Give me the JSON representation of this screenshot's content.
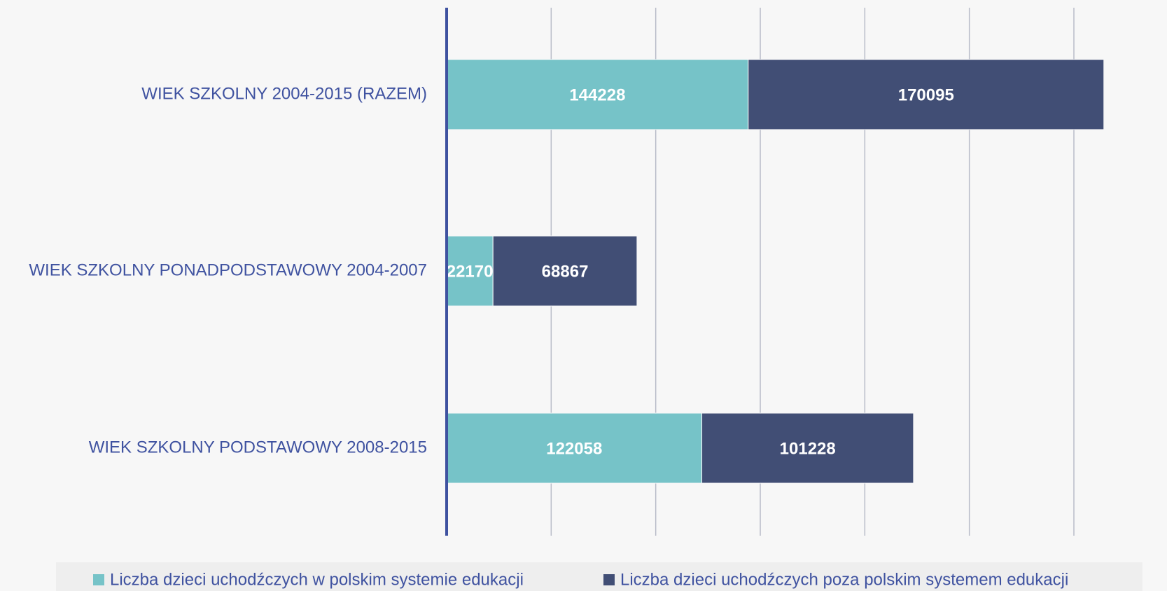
{
  "chart_data": {
    "type": "stacked-barh",
    "categories": [
      "WIEK SZKOLNY 2004-2015 (RAZEM)",
      "WIEK SZKOLNY PONADPODSTAWOWY 2004-2007",
      "WIEK SZKOLNY PODSTAWOWY 2008-2015"
    ],
    "series": [
      {
        "name": "Liczba dzieci uchodźczych w polskim systemie edukacji",
        "color": "#76c3c8",
        "values": [
          144228,
          22170,
          122058
        ]
      },
      {
        "name": "Liczba dzieci uchodźczych poza polskim systemem edukacji",
        "color": "#414e75",
        "values": [
          170095,
          68867,
          101228
        ]
      }
    ],
    "xlim": [
      0,
      300000
    ],
    "xticks": [
      0,
      50000,
      100000,
      150000,
      200000,
      250000,
      300000
    ],
    "grid": true,
    "legend": "bottom"
  }
}
